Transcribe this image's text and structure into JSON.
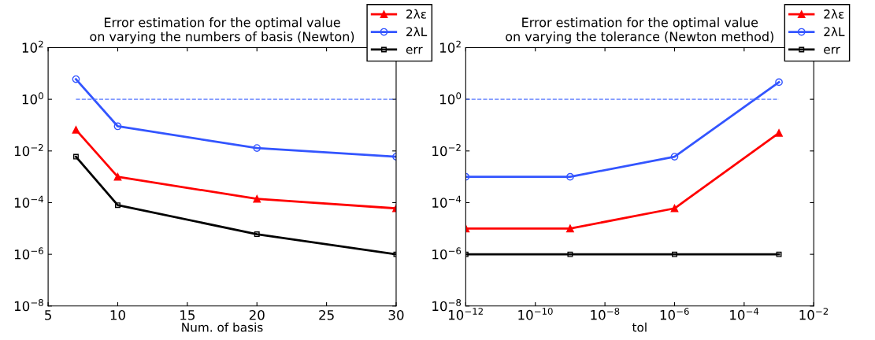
{
  "chart_data": [
    {
      "type": "line",
      "title": "Error estimation for the optimal value\non varying the numbers of basis (Newton)",
      "xlabel": "Num. of basis",
      "log": "y",
      "x": [
        7,
        10,
        20,
        30
      ],
      "series": [
        {
          "name": "2λε",
          "color": "#ff0000",
          "marker": "triangle",
          "values": [
            0.066,
            0.001,
            0.00014,
            6e-05
          ]
        },
        {
          "name": "2λL",
          "color": "#3355ff",
          "marker": "circle",
          "values": [
            6,
            0.09,
            0.013,
            0.006
          ]
        },
        {
          "name": "err",
          "color": "#000000",
          "marker": "square",
          "values": [
            0.006,
            8e-05,
            6e-06,
            1e-06
          ]
        }
      ],
      "ref_lines": [
        {
          "axis": "y",
          "value": 1,
          "color": "#5577ff",
          "line_style": "dashed"
        }
      ],
      "xlim": [
        5,
        30
      ],
      "xticks": [
        5,
        10,
        15,
        20,
        25,
        30
      ],
      "ylim": [
        1e-08,
        100
      ],
      "yticks": [
        {
          "value": 1e-08,
          "label": "10$^{−8}$"
        },
        {
          "value": 1e-06,
          "label": "10$^{−6}$"
        },
        {
          "value": 0.0001,
          "label": "10$^{−4}$"
        },
        {
          "value": 0.01,
          "label": "10$^{−2}$"
        },
        {
          "value": 1,
          "label": "10$^{0}$"
        },
        {
          "value": 100,
          "label": "10$^{2}$"
        }
      ],
      "legend": "top right",
      "grid": false,
      "line_style": "solid"
    },
    {
      "type": "line",
      "title": "Error estimation for the optimal value\non varying the tolerance (Newton method)",
      "xlabel": "tol",
      "log": "xy",
      "x": [
        1e-12,
        1e-09,
        1e-06,
        0.001
      ],
      "series": [
        {
          "name": "2λε",
          "color": "#ff0000",
          "marker": "triangle",
          "values": [
            1e-05,
            1e-05,
            6e-05,
            0.05
          ]
        },
        {
          "name": "2λL",
          "color": "#3355ff",
          "marker": "circle",
          "values": [
            0.001,
            0.001,
            0.006,
            4.6
          ]
        },
        {
          "name": "err",
          "color": "#000000",
          "marker": "square",
          "values": [
            1e-06,
            1e-06,
            1e-06,
            1e-06
          ]
        }
      ],
      "ref_lines": [
        {
          "axis": "y",
          "value": 1,
          "color": "#5577ff",
          "line_style": "dashed"
        }
      ],
      "xlim": [
        1e-12,
        0.01
      ],
      "xticks": [
        {
          "value": 1e-12,
          "label": "10$^{−12}$"
        },
        {
          "value": 1e-10,
          "label": "10$^{−10}$"
        },
        {
          "value": 1e-08,
          "label": "10$^{−8}$"
        },
        {
          "value": 1e-06,
          "label": "10$^{−6}$"
        },
        {
          "value": 0.0001,
          "label": "10$^{−4}$"
        },
        {
          "value": 0.01,
          "label": "10$^{−2}$"
        }
      ],
      "ylim": [
        1e-08,
        100
      ],
      "yticks": [
        {
          "value": 1e-08,
          "label": "10$^{−8}$"
        },
        {
          "value": 1e-06,
          "label": "10$^{−6}$"
        },
        {
          "value": 0.0001,
          "label": "10$^{−4}$"
        },
        {
          "value": 0.01,
          "label": "10$^{−2}$"
        },
        {
          "value": 1,
          "label": "10$^{0}$"
        },
        {
          "value": 100,
          "label": "10$^{2}$"
        }
      ],
      "legend": "top right",
      "grid": false,
      "line_style": "solid"
    }
  ]
}
